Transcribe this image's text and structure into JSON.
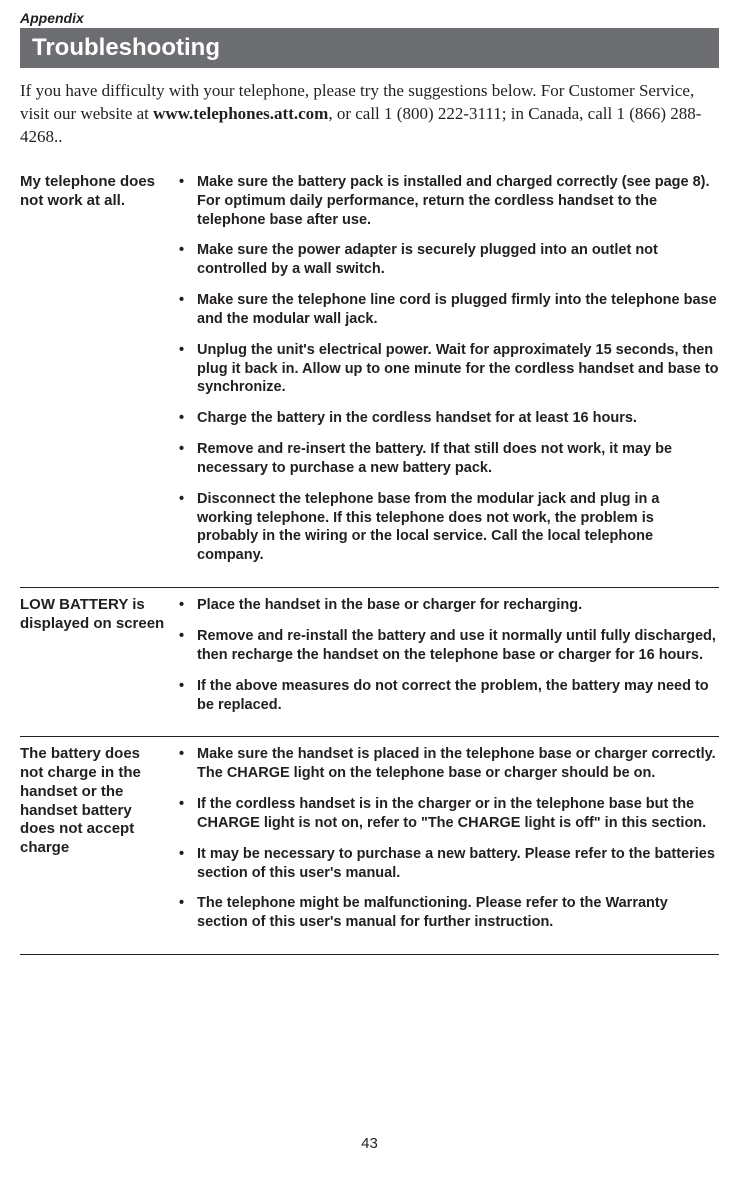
{
  "appendix_label": "Appendix",
  "title": "Troubleshooting",
  "intro_part1": "If you have difficulty with your telephone, please try the suggestions below. For Customer Service, visit our website at ",
  "intro_bold": "www.telephones.att.com",
  "intro_part2": ", or call 1 (800) 222-3111; in Canada, call 1 (866) 288-4268..",
  "sections": [
    {
      "heading": "My telephone does not work at all.",
      "items": [
        {
          "text": "Make sure the battery pack is installed and charged correctly (see page 8). For optimum daily performance, return the cordless handset to the telephone base after use."
        },
        {
          "text": "Make sure the power adapter is securely plugged into an outlet not controlled by a wall switch."
        },
        {
          "text": "Make sure the telephone line cord is plugged firmly into the telephone base and the modular wall jack."
        },
        {
          "text": "Unplug the unit's electrical power. Wait for approximately 15 seconds, then plug it back in. Allow up to one minute for the cordless handset and base to synchronize."
        },
        {
          "text": "Charge the battery in the cordless handset for at least 16 hours."
        },
        {
          "text": "Remove and re-insert the battery. If that still does not work, it may be necessary to purchase a new battery pack."
        },
        {
          "text": "Disconnect the telephone base from the modular jack and plug in a working telephone. If this telephone does not work, the problem is probably in the wiring or the local service. Call the local telephone company."
        }
      ]
    },
    {
      "heading": "LOW BATTERY is displayed on screen",
      "items": [
        {
          "text": "Place the handset in the base or charger for recharging."
        },
        {
          "text": "Remove and re-install the battery and use it normally until fully discharged, then recharge the handset on the telephone base or charger for 16 hours."
        },
        {
          "text": "If the above measures do not correct the problem, the battery may need to be replaced."
        }
      ]
    },
    {
      "heading": "The battery does not charge in the handset or the handset battery does not accept charge",
      "items": [
        {
          "p1": "Make sure the handset is placed in the telephone base or charger correctly. The ",
          "b1": "CHARGE",
          "p2": " light on the telephone base or charger should be on."
        },
        {
          "p1": "If the cordless handset is in the charger or in the telephone base but the ",
          "b1": "CHARGE",
          "p2": " light is not on, refer to \"The ",
          "b2": "CHARGE",
          "p3": " light is off\" in this section."
        },
        {
          "text": "It may be necessary to purchase a new battery. Please refer to the batteries section of this user's manual."
        },
        {
          "text": "The telephone might be malfunctioning. Please refer to the Warranty section of this user's manual for further instruction."
        }
      ]
    }
  ],
  "page_number": "43"
}
